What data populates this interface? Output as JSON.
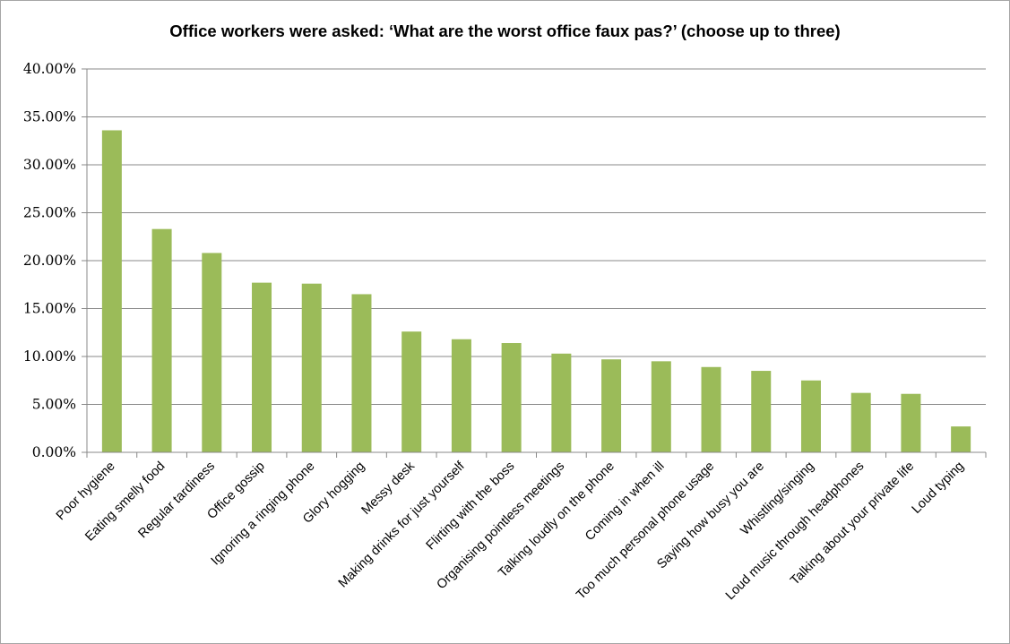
{
  "chart_data": {
    "type": "bar",
    "title": "Office workers were asked: ‘What are the worst office faux pas?’ (choose up to three)",
    "categories": [
      "Poor hygiene",
      "Eating smelly food",
      "Regular tardiness",
      "Office gossip",
      "Ignoring a ringing phone",
      "Glory hogging",
      "Messy desk",
      "Making drinks for just yourself",
      "Flirting with the boss",
      "Organising pointless meetings",
      "Talking loudly on the phone",
      "Coming in when ill",
      "Too much personal phone usage",
      "Saying how busy you are",
      "Whistling/singing",
      "Loud music through headphones",
      "Talking about your private life",
      "Loud typing"
    ],
    "values": [
      33.6,
      23.3,
      20.8,
      17.7,
      17.6,
      16.5,
      12.6,
      11.8,
      11.4,
      10.3,
      9.7,
      9.5,
      8.9,
      8.5,
      7.5,
      6.2,
      6.1,
      2.7
    ],
    "ylim": [
      0,
      40
    ],
    "yticks": [
      "0.00%",
      "5.00%",
      "10.00%",
      "15.00%",
      "20.00%",
      "25.00%",
      "30.00%",
      "35.00%",
      "40.00%"
    ],
    "grid": true,
    "bar_color": "#9bbb59",
    "grid_color": "#888888"
  }
}
